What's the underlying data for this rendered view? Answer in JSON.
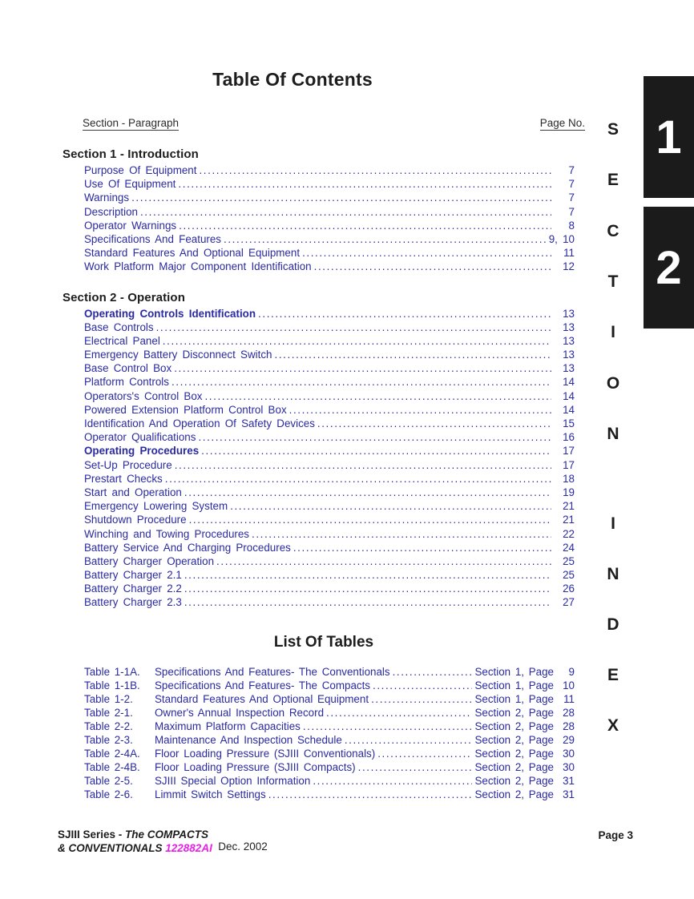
{
  "title": "Table Of Contents",
  "colors": {
    "link_blue": "#2a2aa2",
    "tab_black": "#1b1b1b",
    "part_number_magenta": "#e820e8"
  },
  "header": {
    "left": "Section - Paragraph",
    "right": "Page No."
  },
  "sections": [
    {
      "heading": "Section 1 - Introduction",
      "entries": [
        {
          "label": "Purpose Of Equipment",
          "page": "7",
          "bold": false
        },
        {
          "label": "Use Of Equipment",
          "page": "7",
          "bold": false
        },
        {
          "label": "Warnings",
          "page": "7",
          "bold": false
        },
        {
          "label": "Description",
          "page": "7",
          "bold": false
        },
        {
          "label": "Operator Warnings",
          "page": "8",
          "bold": false
        },
        {
          "label": "Specifications And Features",
          "page": "9, 10",
          "bold": false
        },
        {
          "label": "Standard Features And Optional Equipment",
          "page": "11",
          "bold": false
        },
        {
          "label": "Work Platform Major Component Identification",
          "page": "12",
          "bold": false
        }
      ]
    },
    {
      "heading": "Section 2 - Operation",
      "entries": [
        {
          "label": "Operating Controls Identification",
          "page": "13",
          "bold": true
        },
        {
          "label": "Base Controls",
          "page": "13",
          "bold": false
        },
        {
          "label": "Electrical Panel",
          "page": "13",
          "bold": false
        },
        {
          "label": "Emergency Battery Disconnect Switch",
          "page": "13",
          "bold": false
        },
        {
          "label": "Base Control Box",
          "page": "13",
          "bold": false
        },
        {
          "label": "Platform Controls",
          "page": "14",
          "bold": false
        },
        {
          "label": "Operators's Control Box",
          "page": "14",
          "bold": false
        },
        {
          "label": "Powered Extension Platform Control Box",
          "page": "14",
          "bold": false
        },
        {
          "label": "Identification And Operation Of Safety Devices",
          "page": "15",
          "bold": false
        },
        {
          "label": "Operator Qualifications",
          "page": "16",
          "bold": false
        },
        {
          "label": "Operating Procedures",
          "page": "17",
          "bold": true
        },
        {
          "label": "Set-Up Procedure",
          "page": "17",
          "bold": false
        },
        {
          "label": "Prestart Checks",
          "page": "18",
          "bold": false
        },
        {
          "label": "Start and Operation",
          "page": "19",
          "bold": false
        },
        {
          "label": "Emergency Lowering System",
          "page": "21",
          "bold": false
        },
        {
          "label": "Shutdown Procedure",
          "page": "21",
          "bold": false
        },
        {
          "label": "Winching and Towing Procedures",
          "page": "22",
          "bold": false
        },
        {
          "label": "Battery Service And Charging Procedures",
          "page": "24",
          "bold": false
        },
        {
          "label": "Battery Charger Operation",
          "page": "25",
          "bold": false
        },
        {
          "label": "Battery Charger 2.1",
          "page": "25",
          "bold": false
        },
        {
          "label": "Battery Charger 2.2",
          "page": "26",
          "bold": false
        },
        {
          "label": "Battery Charger 2.3",
          "page": "27",
          "bold": false
        }
      ]
    }
  ],
  "list_of_tables": {
    "title": "List Of Tables",
    "entries": [
      {
        "num": "Table 1-1A.",
        "label": "Specifications And Features- The Conventionals",
        "ref": "Section 1, Page",
        "page": "9"
      },
      {
        "num": "Table 1-1B.",
        "label": "Specifications And Features- The Compacts",
        "ref": "Section 1, Page",
        "page": "10"
      },
      {
        "num": "Table 1-2.",
        "label": "Standard Features And Optional Equipment",
        "ref": "Section 1, Page",
        "page": "11"
      },
      {
        "num": "Table 2-1.",
        "label": "Owner's Annual Inspection Record",
        "ref": "Section 2, Page",
        "page": "28"
      },
      {
        "num": "Table 2-2.",
        "label": "Maximum Platform Capacities",
        "ref": "Section 2, Page",
        "page": "28"
      },
      {
        "num": "Table 2-3.",
        "label": "Maintenance And Inspection Schedule",
        "ref": "Section 2, Page",
        "page": "29"
      },
      {
        "num": "Table 2-4A.",
        "label": "Floor Loading Pressure (SJIII Conventionals)",
        "ref": "Section 2, Page",
        "page": "30"
      },
      {
        "num": "Table 2-4B.",
        "label": "Floor Loading Pressure (SJIII Compacts)",
        "ref": "Section 2, Page",
        "page": "30"
      },
      {
        "num": "Table 2-5.",
        "label": "SJIII Special Option Information",
        "ref": "Section 2, Page",
        "page": "31"
      },
      {
        "num": "Table 2-6.",
        "label": "Limmit Switch Settings",
        "ref": "Section 2, Page",
        "page": "31"
      }
    ]
  },
  "sidebar": {
    "tabs": [
      "1",
      "2"
    ],
    "vertical_label_top": "SECTION",
    "vertical_label_bottom": "INDEX"
  },
  "footer": {
    "model_line1_prefix": "SJIII Series - ",
    "model_line1_italic": "The COMPACTS",
    "model_line2_italic": "& CONVENTIONALS ",
    "part_number": "122882AI",
    "date": "Dec. 2002",
    "page_label": "Page 3"
  }
}
